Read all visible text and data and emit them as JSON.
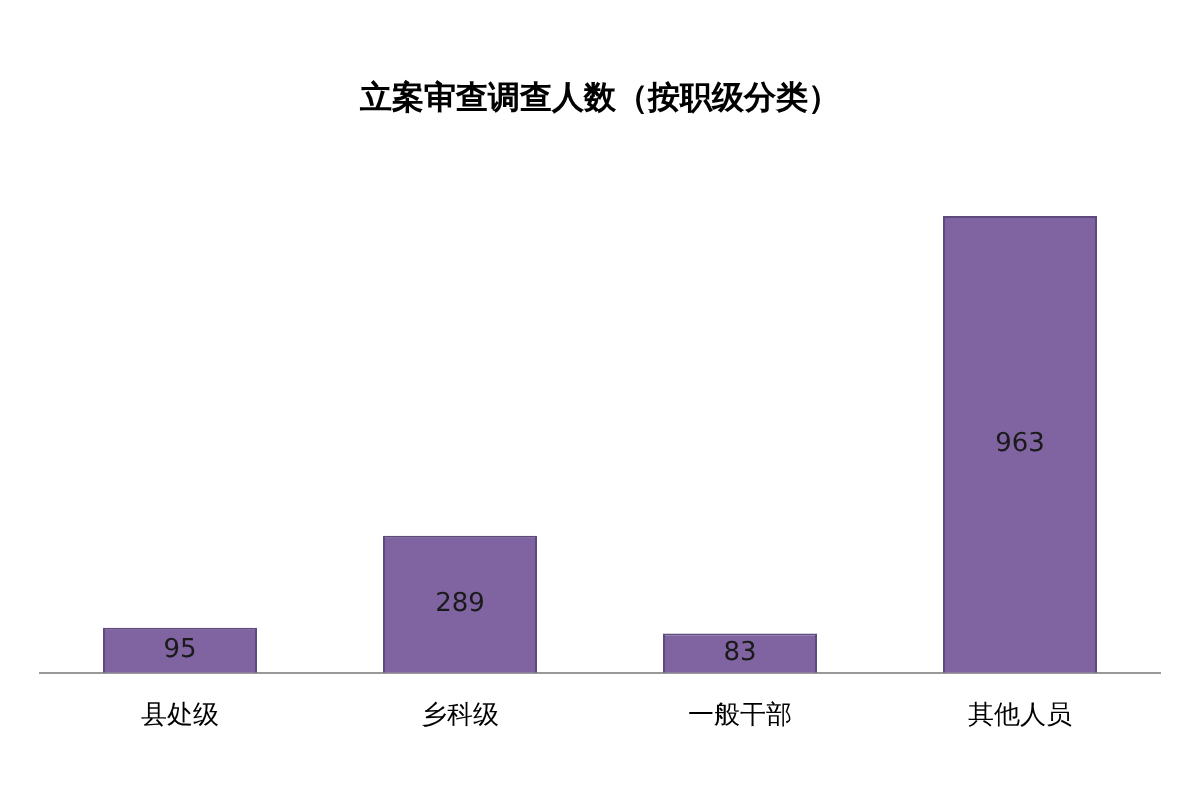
{
  "chart_data": {
    "type": "bar",
    "title": "立案审查调查人数（按职级分类）",
    "categories": [
      "县处级",
      "乡科级",
      "一般干部",
      "其他人员"
    ],
    "values": [
      95,
      289,
      83,
      963
    ],
    "color": "#8064a2",
    "data_labels": true,
    "grid": false,
    "legend": false
  }
}
